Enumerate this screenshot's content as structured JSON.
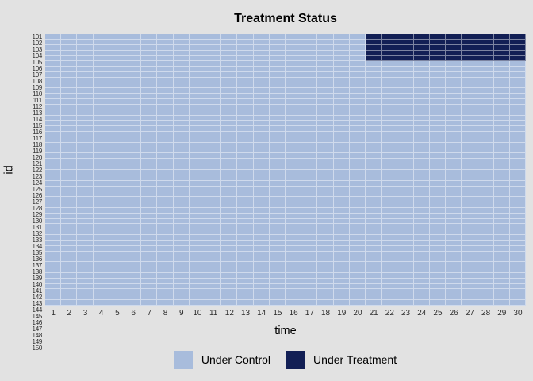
{
  "colors": {
    "background": "#e2e2e2",
    "control": "#a8bcdc",
    "treatment": "#121f55",
    "gridline": "rgba(255,255,255,0.45)",
    "tick_text": "#2b2b2b",
    "title_text": "#000000"
  },
  "chart_data": {
    "type": "heatmap",
    "title": "Treatment Status",
    "xlabel": "time",
    "ylabel": "id",
    "x_ticks": [
      1,
      2,
      3,
      4,
      5,
      6,
      7,
      8,
      9,
      10,
      11,
      12,
      13,
      14,
      15,
      16,
      17,
      18,
      19,
      20,
      21,
      22,
      23,
      24,
      25,
      26,
      27,
      28,
      29,
      30
    ],
    "y_ticks": [
      101,
      102,
      103,
      104,
      105,
      106,
      107,
      108,
      109,
      110,
      111,
      112,
      113,
      114,
      115,
      116,
      117,
      118,
      119,
      120,
      121,
      122,
      123,
      124,
      125,
      126,
      127,
      128,
      129,
      130,
      131,
      132,
      133,
      134,
      135,
      136,
      137,
      138,
      139,
      140,
      141,
      142,
      143,
      144,
      145,
      146,
      147,
      148,
      149,
      150
    ],
    "x_range": [
      1,
      30
    ],
    "id_range": [
      101,
      150
    ],
    "grid": true,
    "legend_position": "bottom",
    "legend": [
      {
        "status": "control",
        "label": "Under Control",
        "color": "#a8bcdc"
      },
      {
        "status": "treatment",
        "label": "Under Treatment",
        "color": "#121f55"
      }
    ],
    "default_status": "control",
    "treatment_blocks": [
      {
        "id_start": 101,
        "id_end": 105,
        "time_start": 21,
        "time_end": 30
      }
    ]
  }
}
